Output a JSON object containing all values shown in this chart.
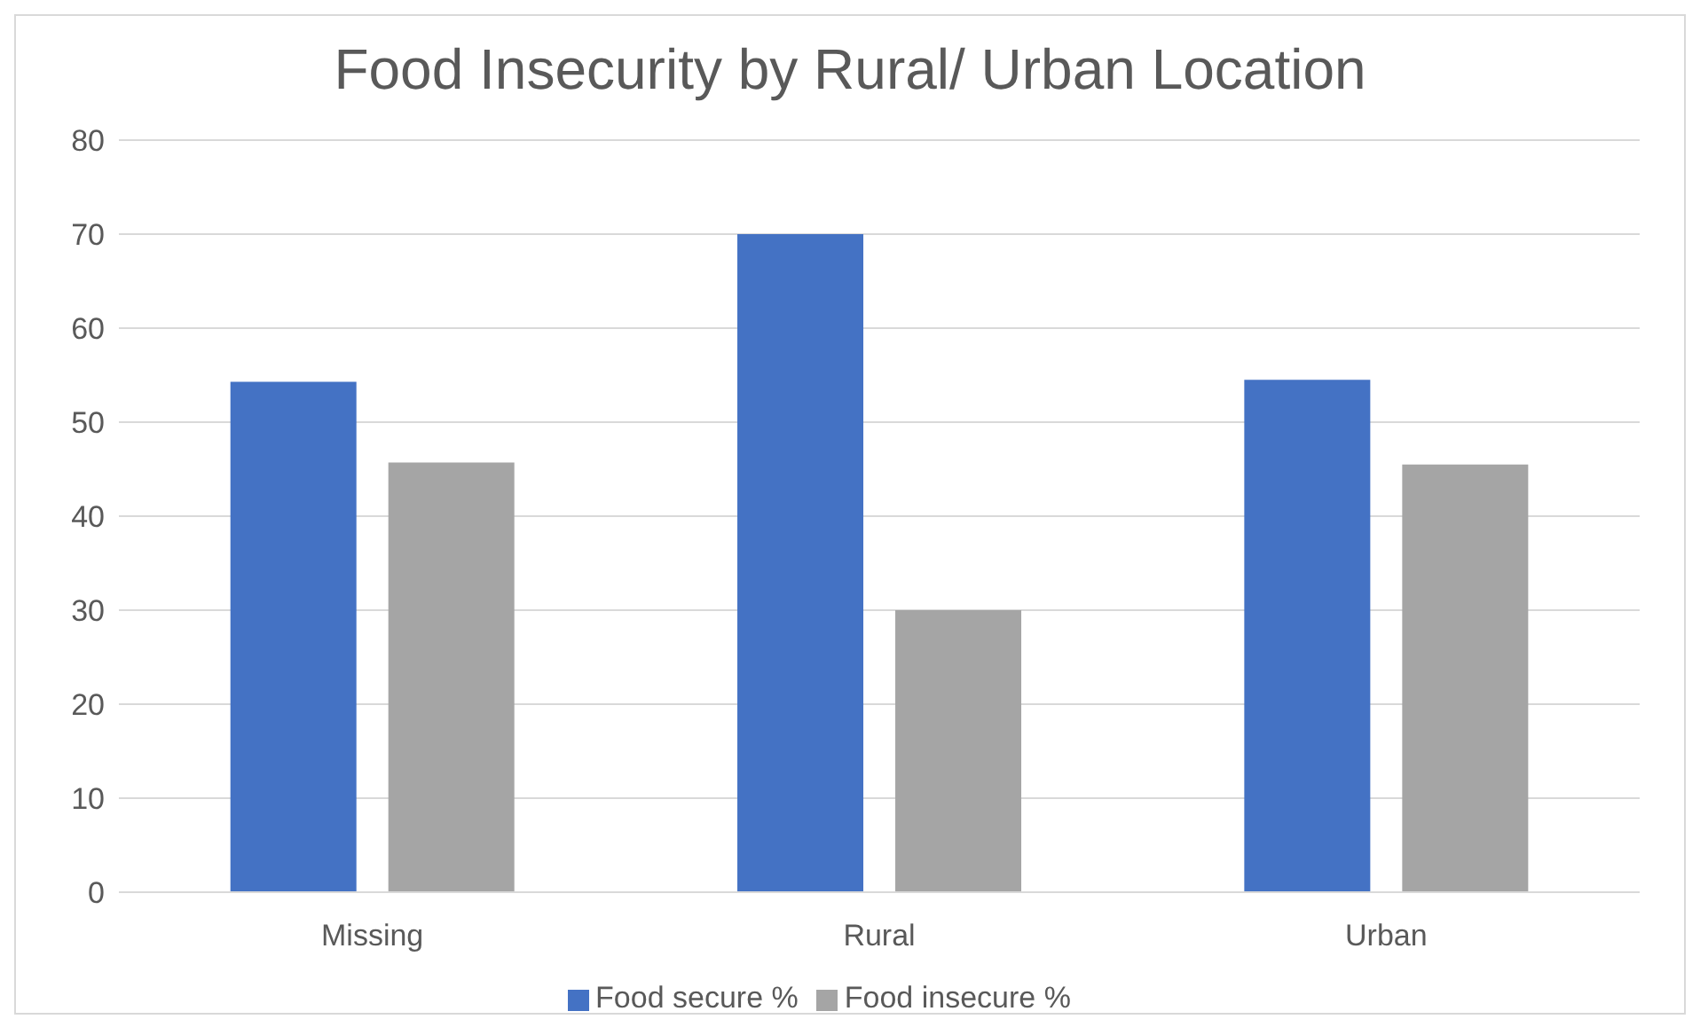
{
  "chart_data": {
    "type": "bar",
    "title": "Food Insecurity by Rural/ Urban Location",
    "categories": [
      "Missing",
      "Rural",
      "Urban"
    ],
    "series": [
      {
        "name": "Food secure %",
        "color": "#4472c4",
        "values": [
          54.3,
          70,
          54.5
        ]
      },
      {
        "name": "Food insecure %",
        "color": "#a5a5a5",
        "values": [
          45.7,
          30,
          45.5
        ]
      }
    ],
    "ylim": [
      0,
      80
    ],
    "yticks": [
      0,
      10,
      20,
      30,
      40,
      50,
      60,
      70,
      80
    ],
    "grid": "y",
    "legend": "bottom"
  }
}
